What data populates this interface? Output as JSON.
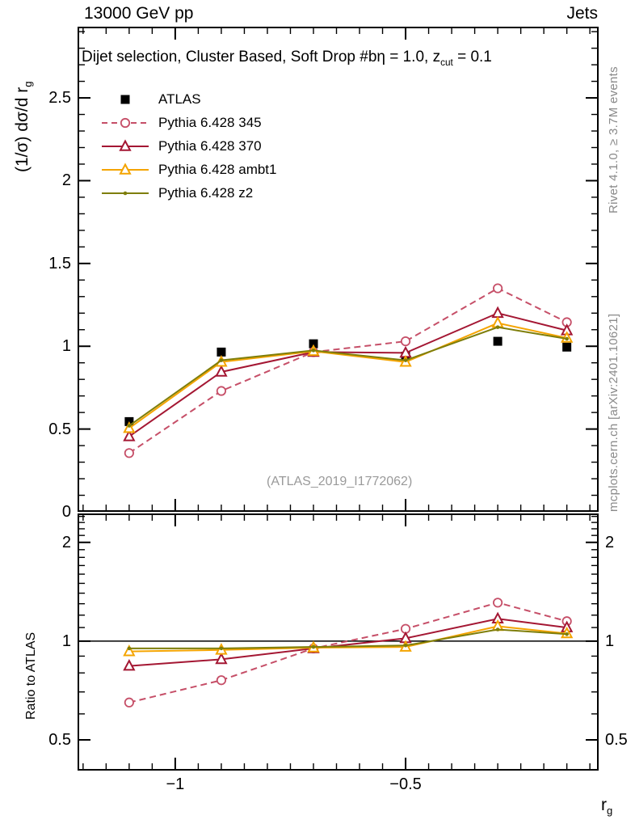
{
  "header": {
    "left_title": "13000 GeV pp",
    "right_title": "Jets"
  },
  "panel_title": {
    "text": "Dijet selection, Cluster Based, Soft Drop #bη = 1.0, z",
    "subscript": "cut",
    "suffix": " = 0.1"
  },
  "axes": {
    "main_ylabel": {
      "text": "(1/σ) dσ/d r",
      "subscript": "g"
    },
    "ratio_ylabel": "Ratio to ATLAS",
    "xlabel": {
      "text": "r",
      "subscript": "g"
    }
  },
  "side_notes": {
    "rivet": "Rivet 4.1.0, ≥ 3.7M events",
    "mcplots": "mcplots.cern.ch [arXiv:2401.10621]"
  },
  "watermark": "(ATLAS_2019_I1772062)",
  "chart_data": {
    "type": "line",
    "title": "Dijet selection, Cluster Based, Soft Drop #bη = 1.0, z_cut = 0.1",
    "xlabel": "r_g",
    "ylabel": "(1/σ) dσ/d r_g",
    "ratio_label": "Ratio to ATLAS",
    "x": [
      -1.1,
      -0.9,
      -0.7,
      -0.5,
      -0.3,
      -0.15
    ],
    "xlim": [
      -1.212,
      -0.081
    ],
    "xticks": [
      {
        "v": -1,
        "text": "−1"
      },
      {
        "v": -0.5,
        "text": "−0.5"
      }
    ],
    "x_minor_step": 0.05,
    "main_panel": {
      "scale": "linear",
      "ylim": [
        0,
        2.93
      ],
      "yticks": [
        {
          "v": 0,
          "text": "0"
        },
        {
          "v": 0.5,
          "text": "0.5"
        },
        {
          "v": 1,
          "text": "1"
        },
        {
          "v": 1.5,
          "text": "1.5"
        },
        {
          "v": 2,
          "text": "2"
        },
        {
          "v": 2.5,
          "text": "2.5"
        }
      ],
      "y_minor_step": 0.1,
      "grid": false
    },
    "ratio_panel": {
      "scale": "log",
      "ylim": [
        0.403,
        2.45
      ],
      "yticks": [
        {
          "v": 0.5,
          "text": "0.5"
        },
        {
          "v": 1,
          "text": "1"
        },
        {
          "v": 2,
          "text": "2"
        }
      ],
      "unity_line": 1,
      "grid": false
    },
    "series": [
      {
        "id": "atlas",
        "name": "ATLAS",
        "color": "#000000",
        "marker": "square",
        "line": "none",
        "values": [
          0.545,
          0.965,
          1.015,
          0.94,
          1.03,
          0.995
        ],
        "ratio": null
      },
      {
        "id": "py345",
        "name": "Pythia 6.428 345",
        "color": "#c64f68",
        "marker": "circle",
        "line": "dashed",
        "values": [
          0.355,
          0.73,
          0.965,
          1.03,
          1.35,
          1.145
        ],
        "ratio": [
          0.65,
          0.76,
          0.95,
          1.09,
          1.31,
          1.15
        ]
      },
      {
        "id": "py370",
        "name": "Pythia 6.428 370",
        "color": "#a41733",
        "marker": "triangle",
        "line": "solid",
        "values": [
          0.455,
          0.845,
          0.965,
          0.96,
          1.2,
          1.095
        ],
        "ratio": [
          0.84,
          0.88,
          0.95,
          1.02,
          1.17,
          1.1
        ]
      },
      {
        "id": "ambt1",
        "name": "Pythia 6.428 ambt1",
        "color": "#f4a400",
        "marker": "triangle",
        "line": "solid",
        "values": [
          0.505,
          0.905,
          0.97,
          0.905,
          1.14,
          1.05
        ],
        "ratio": [
          0.93,
          0.94,
          0.955,
          0.96,
          1.11,
          1.055
        ]
      },
      {
        "id": "z2",
        "name": "Pythia 6.428 z2",
        "color": "#7e7e0a",
        "marker": "dot",
        "line": "solid",
        "values": [
          0.52,
          0.915,
          0.975,
          0.915,
          1.115,
          1.045
        ],
        "ratio": [
          0.95,
          0.95,
          0.96,
          0.97,
          1.085,
          1.05
        ]
      }
    ],
    "legend_position": "top-left"
  }
}
